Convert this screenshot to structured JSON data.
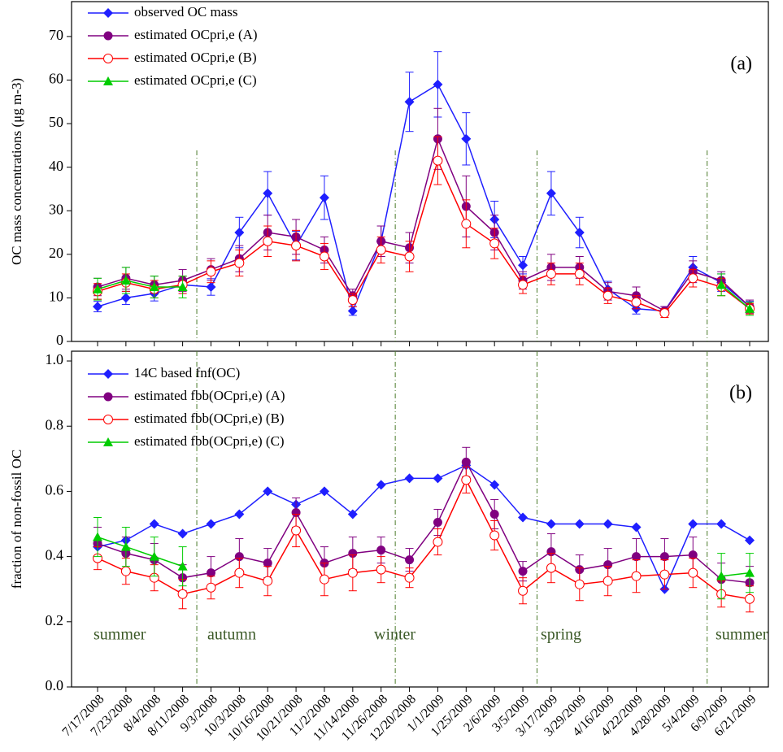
{
  "chart_data": [
    {
      "type": "line",
      "panel_label": "(a)",
      "ylabel": "OC mass concentrations (μg m-3)",
      "ylim": [
        0,
        78
      ],
      "yticks": [
        0,
        10,
        20,
        30,
        40,
        50,
        60,
        70
      ],
      "series": [
        {
          "name": "observed OC mass",
          "color": "#1f1fff",
          "marker": "diamond",
          "values": [
            8,
            10,
            11,
            13,
            12.5,
            25,
            34,
            22,
            33,
            7,
            23,
            55,
            59,
            46.5,
            28,
            17.5,
            34,
            25,
            12,
            7.5,
            7,
            17,
            13.5,
            8
          ],
          "errors": [
            1.2,
            1.5,
            1.7,
            2,
            1.9,
            3.5,
            5,
            3.3,
            5,
            1,
            3.5,
            6.8,
            7.5,
            6,
            4.2,
            2,
            5,
            3.5,
            1.8,
            1.2,
            1,
            2.5,
            2,
            1.2
          ]
        },
        {
          "name": "estimated OCpri,e (A)",
          "color": "#800080",
          "marker": "circle",
          "values": [
            12.5,
            14.5,
            13,
            14,
            16.5,
            19,
            25,
            24,
            21,
            10.5,
            23,
            21.5,
            46.5,
            31,
            25,
            14,
            17,
            17,
            11.5,
            10.5,
            7,
            16,
            14,
            8
          ],
          "errors": [
            2,
            2.5,
            2,
            2.5,
            2.5,
            3,
            4,
            4,
            3,
            1.5,
            3.5,
            3.5,
            7,
            7,
            4,
            2,
            3,
            2.5,
            2,
            2,
            1,
            2.5,
            2,
            1.5
          ]
        },
        {
          "name": "estimated OCpri,e (B)",
          "color": "#ff0000",
          "marker": "open-circle",
          "values": [
            11.5,
            13.5,
            12,
            13,
            16,
            18,
            23,
            22,
            19.5,
            9.5,
            21,
            19.5,
            41.5,
            27,
            22.5,
            13,
            15.5,
            15.5,
            10.5,
            9,
            6.5,
            14.5,
            12.5,
            7.5
          ],
          "errors": [
            1.8,
            2,
            2,
            2,
            2.5,
            3,
            3.5,
            3.5,
            3,
            1.5,
            3,
            3.5,
            5.5,
            5.5,
            3.5,
            2,
            2.5,
            2.5,
            1.8,
            1.5,
            1,
            2,
            2,
            1.2
          ]
        },
        {
          "name": "estimated OCpri,e (C)",
          "color": "#00cc00",
          "marker": "triangle",
          "values": [
            12,
            14,
            12.5,
            12.5,
            null,
            null,
            null,
            null,
            null,
            null,
            null,
            null,
            null,
            null,
            null,
            null,
            null,
            null,
            null,
            null,
            null,
            null,
            13,
            7.5
          ],
          "errors": [
            2.5,
            3,
            2.5,
            2.5,
            null,
            null,
            null,
            null,
            null,
            null,
            null,
            null,
            null,
            null,
            null,
            null,
            null,
            null,
            null,
            null,
            null,
            null,
            2.5,
            1.5
          ]
        }
      ]
    },
    {
      "type": "line",
      "panel_label": "(b)",
      "ylabel": "fraction of non-fossil OC",
      "ylim": [
        0,
        1.03
      ],
      "yticks": [
        {
          "value": 0,
          "label": "0.0"
        },
        0.2,
        0.4,
        0.6,
        0.8,
        {
          "value": 1,
          "label": "1.0"
        }
      ],
      "categories": [
        "7/17/2008",
        "7/23/2008",
        "8/4/2008",
        "8/11/2008",
        "9/3/2008",
        "10/3/2008",
        "10/16/2008",
        "10/21/2008",
        "11/2/2008",
        "11/14/2008",
        "11/26/2008",
        "12/20/2008",
        "1/1/2009",
        "1/25/2009",
        "2/6/2009",
        "3/5/2009",
        "3/17/2009",
        "3/29/2009",
        "4/16/2009",
        "4/22/2009",
        "4/28/2009",
        "5/4/2009",
        "6/9/2009",
        "6/21/2009"
      ],
      "annotations": [
        "summer",
        "autumn",
        "winter",
        "spring",
        "summer"
      ],
      "series": [
        {
          "name": "14C based fnf(OC)",
          "color": "#1f1fff",
          "marker": "diamond",
          "values": [
            0.43,
            0.45,
            0.5,
            0.47,
            0.5,
            0.53,
            0.6,
            0.56,
            0.6,
            0.53,
            0.62,
            0.64,
            0.64,
            0.68,
            0.62,
            0.52,
            0.5,
            0.5,
            0.5,
            0.49,
            0.3,
            0.5,
            0.5,
            0.45
          ]
        },
        {
          "name": "estimated fbb(OCpri,e) (A)",
          "color": "#800080",
          "marker": "circle",
          "values": [
            0.44,
            0.41,
            0.39,
            0.335,
            0.35,
            0.4,
            0.38,
            0.535,
            0.38,
            0.41,
            0.42,
            0.39,
            0.505,
            0.69,
            0.53,
            0.355,
            0.415,
            0.36,
            0.375,
            0.4,
            0.4,
            0.405,
            0.33,
            0.32
          ],
          "errors": [
            0.05,
            0.05,
            0.05,
            0.04,
            0.05,
            0.055,
            0.045,
            0.045,
            0.05,
            0.05,
            0.04,
            0.035,
            0.04,
            0.045,
            0.045,
            0.03,
            0.055,
            0.045,
            0.05,
            0.055,
            0.055,
            0.055,
            0.05,
            0.05
          ]
        },
        {
          "name": "estimated fbb(OCpri,e) (B)",
          "color": "#ff0000",
          "marker": "open-circle",
          "values": [
            0.395,
            0.355,
            0.335,
            0.285,
            0.305,
            0.35,
            0.325,
            0.48,
            0.33,
            0.35,
            0.36,
            0.335,
            0.445,
            0.635,
            0.465,
            0.295,
            0.365,
            0.315,
            0.325,
            0.34,
            0.345,
            0.35,
            0.285,
            0.27
          ],
          "errors": [
            0.035,
            0.04,
            0.04,
            0.045,
            0.035,
            0.045,
            0.045,
            0.05,
            0.05,
            0.055,
            0.04,
            0.03,
            0.04,
            0.04,
            0.045,
            0.04,
            0.045,
            0.05,
            0.045,
            0.05,
            0.045,
            0.045,
            0.04,
            0.04
          ]
        },
        {
          "name": "estimated fbb(OCpri,e) (C)",
          "color": "#00cc00",
          "marker": "triangle",
          "values": [
            0.46,
            0.43,
            0.4,
            0.37,
            null,
            null,
            null,
            null,
            null,
            null,
            null,
            null,
            null,
            null,
            null,
            null,
            null,
            null,
            null,
            null,
            null,
            null,
            0.34,
            0.35
          ],
          "errors": [
            0.06,
            0.06,
            0.06,
            0.06,
            null,
            null,
            null,
            null,
            null,
            null,
            null,
            null,
            null,
            null,
            null,
            null,
            null,
            null,
            null,
            null,
            null,
            null,
            0.07,
            0.06
          ]
        }
      ]
    }
  ]
}
